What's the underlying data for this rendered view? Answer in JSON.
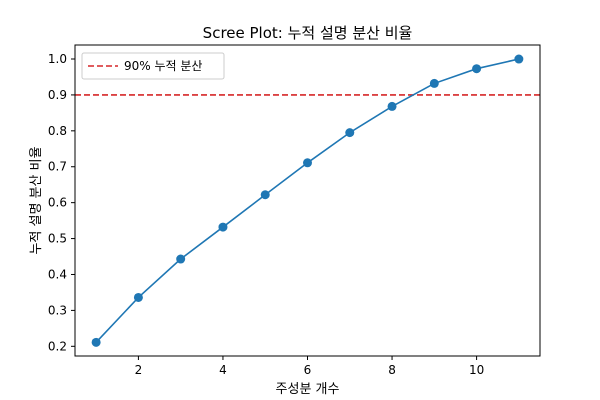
{
  "chart_data": {
    "type": "line",
    "title": "Scree Plot: 누적 설명 분산 비율",
    "xlabel": "주성분 개수",
    "ylabel": "누적 설명 분산 비율",
    "xlim": [
      0.5,
      11.5
    ],
    "ylim": [
      0.173,
      1.039
    ],
    "xticks": [
      2,
      4,
      6,
      8,
      10
    ],
    "yticks": [
      0.2,
      0.3,
      0.4,
      0.5,
      0.6,
      0.7,
      0.8,
      0.9,
      1.0
    ],
    "ytick_labels": [
      "0.2",
      "0.3",
      "0.4",
      "0.5",
      "0.6",
      "0.7",
      "0.8",
      "0.9",
      "1.0"
    ],
    "grid": false,
    "legend_position": "top-left",
    "series": [
      {
        "x": [
          1,
          2,
          3,
          4,
          5,
          6,
          7,
          8,
          9,
          10,
          11
        ],
        "values": [
          0.211,
          0.336,
          0.443,
          0.532,
          0.622,
          0.711,
          0.795,
          0.868,
          0.932,
          0.973,
          1.0
        ],
        "color": "#1f77b4"
      }
    ],
    "reference_line": {
      "y": 0.9,
      "label": "90% 누적 분산",
      "color": "#d62728",
      "style": "dashed"
    }
  }
}
